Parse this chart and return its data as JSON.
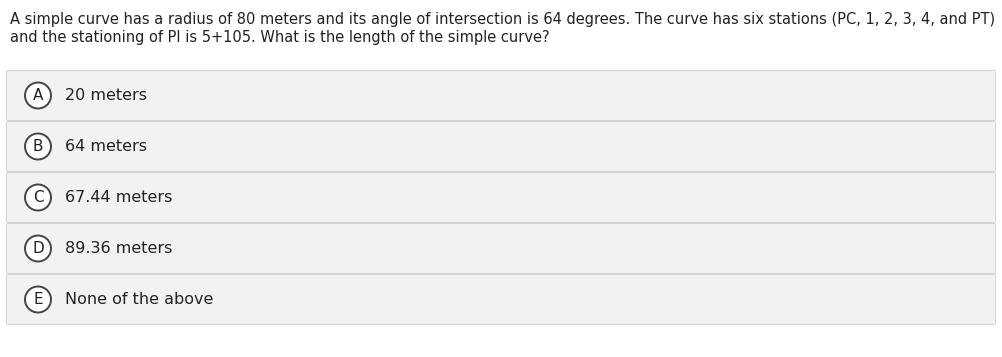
{
  "question_line1": "A simple curve has a radius of 80 meters and its angle of intersection is 64 degrees. The curve has six stations (PC, 1, 2, 3, 4, and PT)",
  "question_line2": "and the stationing of PI is 5+105. What is the length of the simple curve?",
  "options": [
    {
      "label": "A",
      "text": "20 meters"
    },
    {
      "label": "B",
      "text": "64 meters"
    },
    {
      "label": "C",
      "text": "67.44 meters"
    },
    {
      "label": "D",
      "text": "89.36 meters"
    },
    {
      "label": "E",
      "text": "None of the above"
    }
  ],
  "bg_color": "#ffffff",
  "option_bg_color": "#f2f2f2",
  "option_border_color": "#cccccc",
  "question_color": "#222222",
  "option_text_color": "#222222",
  "circle_edge_color": "#444444",
  "circle_fill_color": "#ffffff",
  "question_fontsize": 10.5,
  "option_fontsize": 11.5,
  "label_fontsize": 11.0,
  "fig_width": 10.02,
  "fig_height": 3.57,
  "dpi": 100
}
